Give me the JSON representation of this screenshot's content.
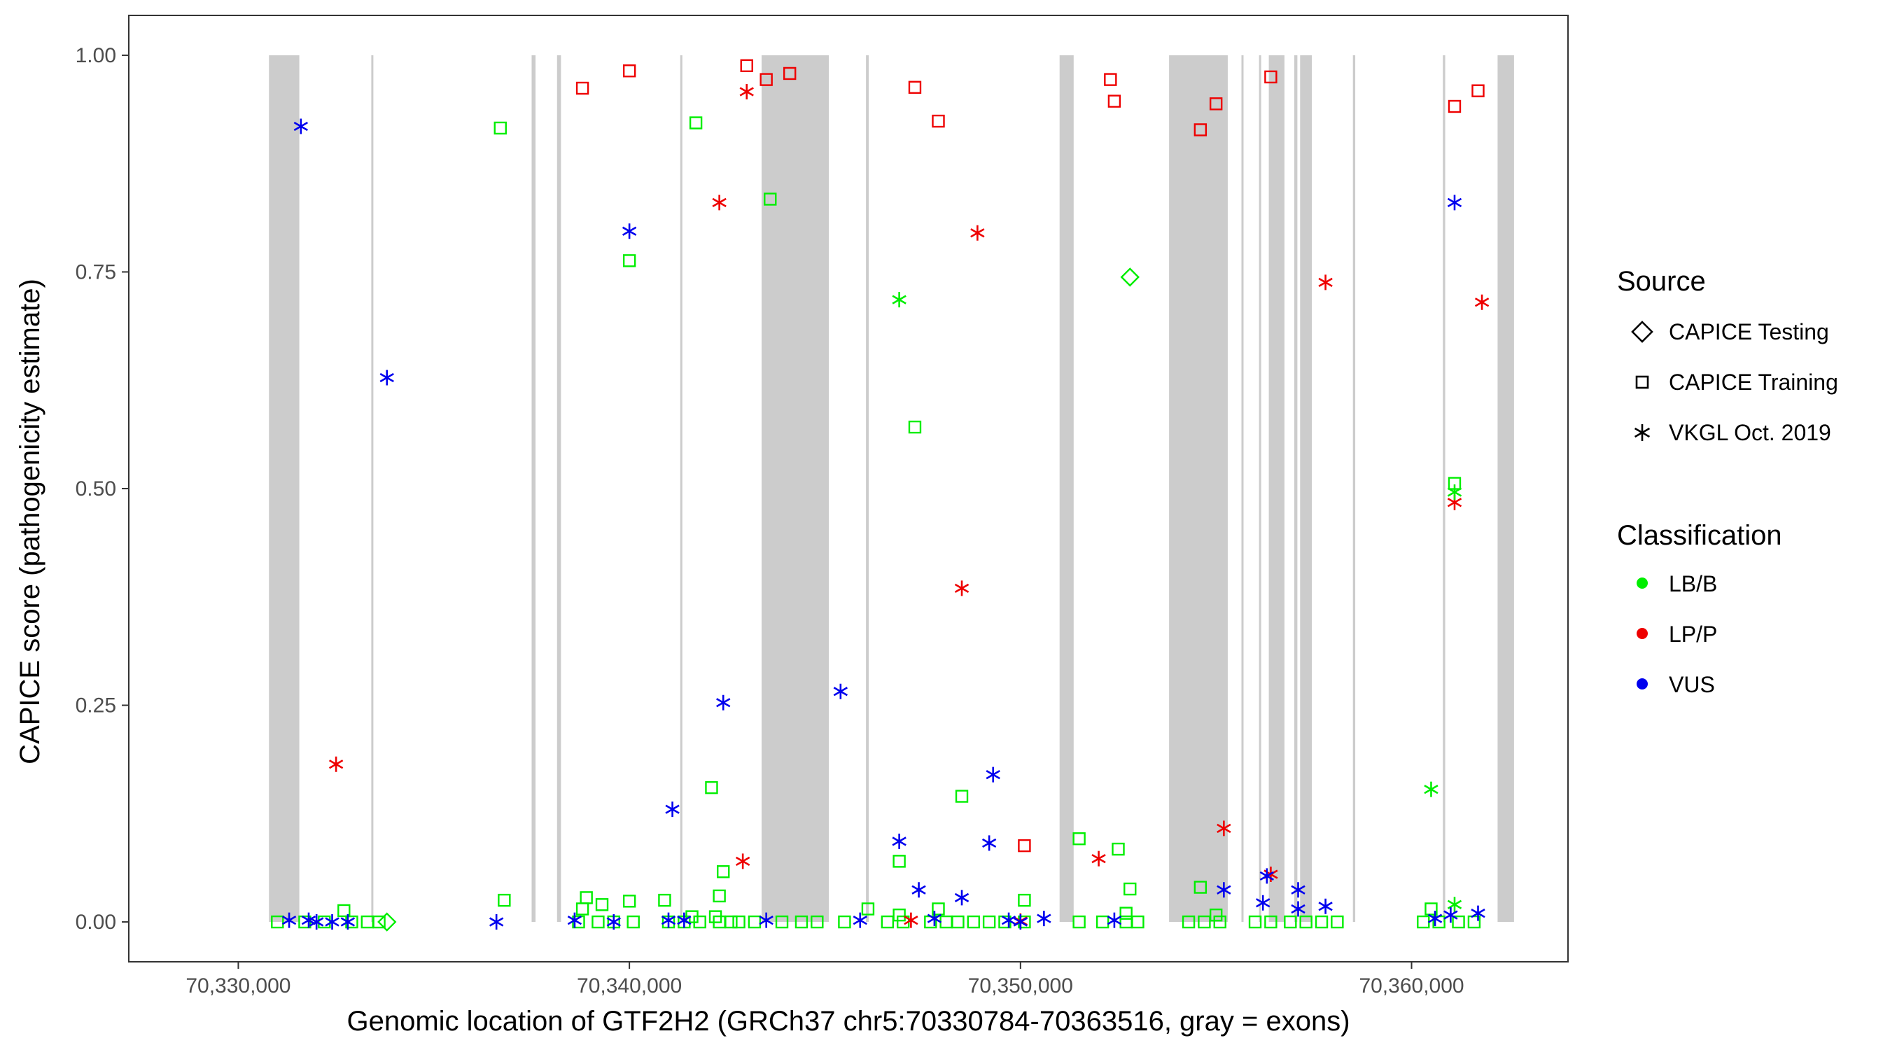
{
  "chart_data": {
    "type": "scatter",
    "title": "",
    "xlabel": "Genomic location of GTF2H2 (GRCh37 chr5:70330784-70363516, gray = exons)",
    "ylabel": "CAPICE score (pathogenicity estimate)",
    "xlim": [
      70327200,
      70364000
    ],
    "ylim": [
      -0.046,
      1.046
    ],
    "x_ticks": [
      70330000,
      70340000,
      70350000,
      70360000
    ],
    "x_tick_labels": [
      "70,330,000",
      "70,340,000",
      "70,350,000",
      "70,360,000"
    ],
    "y_ticks": [
      0,
      0.25,
      0.5,
      0.75,
      1
    ],
    "y_tick_labels": [
      "0.00",
      "0.25",
      "0.50",
      "0.75",
      "1.00"
    ],
    "exons": [
      [
        70330784,
        70331560
      ],
      [
        70333400,
        70333430
      ],
      [
        70337500,
        70337600
      ],
      [
        70338150,
        70338250
      ],
      [
        70341300,
        70341340
      ],
      [
        70343380,
        70345100
      ],
      [
        70346050,
        70346120
      ],
      [
        70351000,
        70351360
      ],
      [
        70353800,
        70355300
      ],
      [
        70355650,
        70355700
      ],
      [
        70356100,
        70356150
      ],
      [
        70356350,
        70356750
      ],
      [
        70357000,
        70357080
      ],
      [
        70357150,
        70357450
      ],
      [
        70358500,
        70358560
      ],
      [
        70360800,
        70360860
      ],
      [
        70362200,
        70362620
      ]
    ],
    "exon_color": "#cccccc",
    "legend": {
      "source_title": "Source",
      "source_entries": [
        {
          "label": "CAPICE Testing",
          "shape": "diamond"
        },
        {
          "label": "CAPICE Training",
          "shape": "square"
        },
        {
          "label": "VKGL Oct. 2019",
          "shape": "asterisk"
        }
      ],
      "class_title": "Classification",
      "class_entries": [
        {
          "label": "LB/B",
          "color": "#00ee00"
        },
        {
          "label": "LP/P",
          "color": "#ee0000"
        },
        {
          "label": "VUS",
          "color": "#0000ee"
        }
      ]
    },
    "colors": {
      "LB/B": "#00ee00",
      "LP/P": "#ee0000",
      "VUS": "#0000ee"
    },
    "series": [
      {
        "name": "CAPICE Training LP/P",
        "shape": "square",
        "class": "LP/P",
        "points": [
          [
            70338800,
            0.962
          ],
          [
            70340000,
            0.982
          ],
          [
            70343000,
            0.988
          ],
          [
            70343500,
            0.972
          ],
          [
            70344100,
            0.979
          ],
          [
            70347300,
            0.963
          ],
          [
            70347900,
            0.924
          ],
          [
            70350100,
            0.088
          ],
          [
            70352300,
            0.972
          ],
          [
            70352400,
            0.947
          ],
          [
            70354600,
            0.914
          ],
          [
            70355000,
            0.944
          ],
          [
            70356400,
            0.975
          ],
          [
            70361100,
            0.941
          ],
          [
            70361700,
            0.959
          ]
        ]
      },
      {
        "name": "CAPICE Training LB/B",
        "shape": "square",
        "class": "LB/B",
        "points": [
          [
            70336700,
            0.916
          ],
          [
            70336800,
            0.025
          ],
          [
            70341700,
            0.922
          ],
          [
            70340000,
            0.763
          ],
          [
            70343600,
            0.834
          ],
          [
            70347300,
            0.571
          ],
          [
            70342100,
            0.155
          ],
          [
            70348500,
            0.145
          ],
          [
            70351500,
            0.096
          ],
          [
            70352500,
            0.084
          ],
          [
            70346900,
            0.07
          ],
          [
            70342400,
            0.058
          ],
          [
            70352800,
            0.038
          ],
          [
            70354600,
            0.04
          ],
          [
            70342300,
            0.03
          ],
          [
            70338900,
            0.028
          ],
          [
            70340000,
            0.024
          ],
          [
            70340900,
            0.025
          ],
          [
            70350100,
            0.025
          ],
          [
            70332700,
            0.013
          ],
          [
            70339300,
            0.02
          ],
          [
            70338800,
            0.015
          ],
          [
            70346100,
            0.015
          ],
          [
            70360500,
            0.015
          ],
          [
            70361100,
            0.506
          ],
          [
            70347900,
            0.015
          ],
          [
            70352700,
            0.01
          ],
          [
            70355000,
            0.008
          ],
          [
            70341600,
            0.006
          ],
          [
            70342200,
            0.006
          ],
          [
            70346900,
            0.008
          ],
          [
            70331000,
            0
          ],
          [
            70331700,
            0
          ],
          [
            70332200,
            0
          ],
          [
            70332900,
            0
          ],
          [
            70333300,
            0
          ],
          [
            70333600,
            0
          ],
          [
            70338700,
            0
          ],
          [
            70339200,
            0
          ],
          [
            70339600,
            0
          ],
          [
            70340100,
            0
          ],
          [
            70341000,
            0
          ],
          [
            70341400,
            0
          ],
          [
            70341800,
            0
          ],
          [
            70342300,
            0
          ],
          [
            70342600,
            0
          ],
          [
            70342800,
            0
          ],
          [
            70343200,
            0
          ],
          [
            70343900,
            0
          ],
          [
            70344400,
            0
          ],
          [
            70344800,
            0
          ],
          [
            70345500,
            0
          ],
          [
            70346600,
            0
          ],
          [
            70347000,
            0
          ],
          [
            70347700,
            0
          ],
          [
            70348100,
            0
          ],
          [
            70348400,
            0
          ],
          [
            70348800,
            0
          ],
          [
            70349200,
            0
          ],
          [
            70349600,
            0
          ],
          [
            70350100,
            0
          ],
          [
            70351500,
            0
          ],
          [
            70352100,
            0
          ],
          [
            70352700,
            0
          ],
          [
            70353000,
            0
          ],
          [
            70354300,
            0
          ],
          [
            70354700,
            0
          ],
          [
            70355100,
            0
          ],
          [
            70356000,
            0
          ],
          [
            70356400,
            0
          ],
          [
            70356900,
            0
          ],
          [
            70357300,
            0
          ],
          [
            70357700,
            0
          ],
          [
            70358100,
            0
          ],
          [
            70360300,
            0
          ],
          [
            70360700,
            0
          ],
          [
            70361200,
            0
          ],
          [
            70361600,
            0
          ]
        ]
      },
      {
        "name": "CAPICE Testing LB/B",
        "shape": "diamond",
        "class": "LB/B",
        "points": [
          [
            70333800,
            0
          ],
          [
            70352800,
            0.744
          ]
        ]
      },
      {
        "name": "VKGL LP/P",
        "shape": "asterisk",
        "class": "LP/P",
        "points": [
          [
            70332500,
            0.182
          ],
          [
            70342300,
            0.83
          ],
          [
            70343000,
            0.958
          ],
          [
            70348900,
            0.795
          ],
          [
            70348500,
            0.385
          ],
          [
            70342900,
            0.07
          ],
          [
            70352000,
            0.073
          ],
          [
            70355200,
            0.108
          ],
          [
            70356400,
            0.055
          ],
          [
            70357800,
            0.738
          ],
          [
            70361100,
            0.484
          ],
          [
            70361800,
            0.715
          ],
          [
            70347200,
            0.002
          ],
          [
            70350000,
            0.001
          ]
        ]
      },
      {
        "name": "VKGL LB/B",
        "shape": "asterisk",
        "class": "LB/B",
        "points": [
          [
            70346900,
            0.718
          ],
          [
            70360500,
            0.153
          ],
          [
            70361100,
            0.496
          ],
          [
            70361100,
            0.02
          ]
        ]
      },
      {
        "name": "VKGL VUS",
        "shape": "asterisk",
        "class": "VUS",
        "points": [
          [
            70331600,
            0.918
          ],
          [
            70333800,
            0.628
          ],
          [
            70340000,
            0.797
          ],
          [
            70342400,
            0.253
          ],
          [
            70345400,
            0.266
          ],
          [
            70341100,
            0.13
          ],
          [
            70349300,
            0.17
          ],
          [
            70346900,
            0.093
          ],
          [
            70349200,
            0.091
          ],
          [
            70347400,
            0.037
          ],
          [
            70348500,
            0.028
          ],
          [
            70355200,
            0.037
          ],
          [
            70356300,
            0.053
          ],
          [
            70357100,
            0.037
          ],
          [
            70357800,
            0.018
          ],
          [
            70361100,
            0.83
          ],
          [
            70356200,
            0.022
          ],
          [
            70357100,
            0.015
          ],
          [
            70361700,
            0.01
          ],
          [
            70331300,
            0.002
          ],
          [
            70331800,
            0.002
          ],
          [
            70332000,
            0
          ],
          [
            70332400,
            0
          ],
          [
            70332800,
            0
          ],
          [
            70336600,
            0
          ],
          [
            70338600,
            0.002
          ],
          [
            70339600,
            0
          ],
          [
            70341000,
            0.002
          ],
          [
            70341400,
            0.002
          ],
          [
            70343500,
            0.002
          ],
          [
            70345900,
            0.002
          ],
          [
            70347800,
            0.004
          ],
          [
            70349700,
            0.002
          ],
          [
            70350000,
            0
          ],
          [
            70350600,
            0.004
          ],
          [
            70352400,
            0.002
          ],
          [
            70360600,
            0.004
          ],
          [
            70361000,
            0.008
          ]
        ]
      }
    ]
  }
}
